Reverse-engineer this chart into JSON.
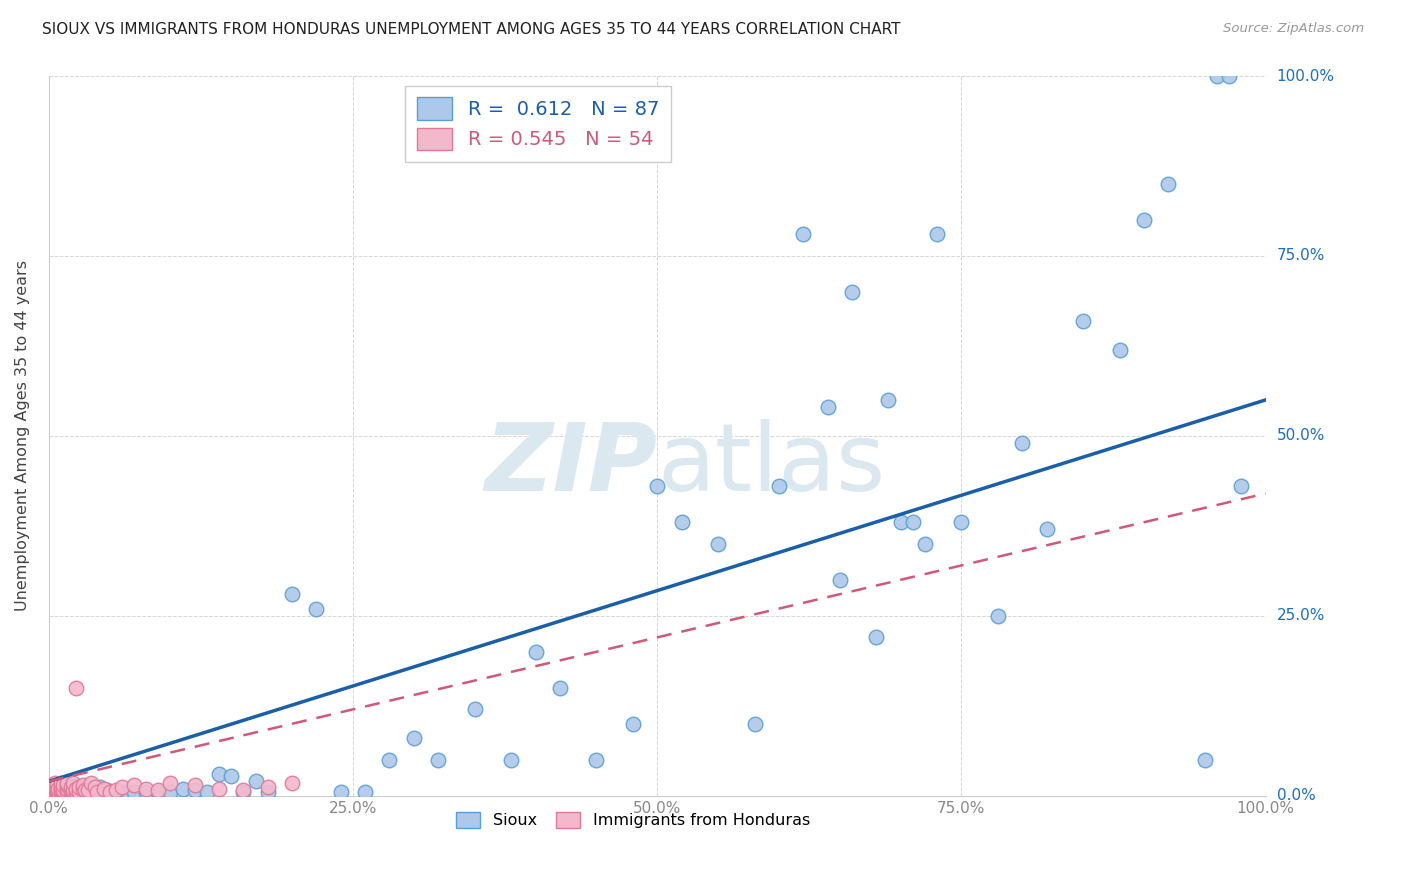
{
  "title": "SIOUX VS IMMIGRANTS FROM HONDURAS UNEMPLOYMENT AMONG AGES 35 TO 44 YEARS CORRELATION CHART",
  "source": "Source: ZipAtlas.com",
  "ylabel": "Unemployment Among Ages 35 to 44 years",
  "xlim": [
    0,
    1
  ],
  "ylim": [
    0,
    1
  ],
  "ytick_labels": [
    "0.0%",
    "25.0%",
    "50.0%",
    "75.0%",
    "100.0%"
  ],
  "ytick_vals": [
    0,
    0.25,
    0.5,
    0.75,
    1.0
  ],
  "xtick_labels": [
    "0.0%",
    "25.0%",
    "50.0%",
    "75.0%",
    "100.0%"
  ],
  "xtick_vals": [
    0,
    0.25,
    0.5,
    0.75,
    1.0
  ],
  "sioux_R": 0.612,
  "sioux_N": 87,
  "honduras_R": 0.545,
  "honduras_N": 54,
  "sioux_color": "#adc8e8",
  "sioux_edge_color": "#5a9fd4",
  "honduras_color": "#f4b8cc",
  "honduras_edge_color": "#e07898",
  "regression_sioux_color": "#1a5fa8",
  "regression_honduras_color": "#d05878",
  "background_color": "#ffffff",
  "watermark_color": "#dce8f0",
  "sioux_x": [
    0.005,
    0.005,
    0.005,
    0.008,
    0.008,
    0.01,
    0.01,
    0.01,
    0.012,
    0.012,
    0.015,
    0.015,
    0.015,
    0.018,
    0.018,
    0.02,
    0.02,
    0.022,
    0.022,
    0.025,
    0.025,
    0.028,
    0.028,
    0.03,
    0.032,
    0.035,
    0.038,
    0.04,
    0.042,
    0.045,
    0.048,
    0.05,
    0.055,
    0.06,
    0.065,
    0.07,
    0.08,
    0.09,
    0.1,
    0.11,
    0.12,
    0.13,
    0.14,
    0.15,
    0.16,
    0.17,
    0.18,
    0.2,
    0.22,
    0.24,
    0.26,
    0.28,
    0.3,
    0.32,
    0.35,
    0.38,
    0.4,
    0.42,
    0.45,
    0.48,
    0.5,
    0.52,
    0.55,
    0.58,
    0.6,
    0.62,
    0.65,
    0.68,
    0.7,
    0.72,
    0.75,
    0.78,
    0.8,
    0.82,
    0.85,
    0.88,
    0.9,
    0.92,
    0.95,
    0.98,
    0.64,
    0.66,
    0.69,
    0.71,
    0.73,
    0.96,
    0.97
  ],
  "sioux_y": [
    0.005,
    0.01,
    0.008,
    0.005,
    0.012,
    0.005,
    0.008,
    0.015,
    0.005,
    0.01,
    0.005,
    0.008,
    0.012,
    0.005,
    0.01,
    0.005,
    0.008,
    0.005,
    0.012,
    0.005,
    0.008,
    0.005,
    0.012,
    0.005,
    0.01,
    0.005,
    0.008,
    0.005,
    0.012,
    0.005,
    0.008,
    0.005,
    0.005,
    0.005,
    0.005,
    0.005,
    0.005,
    0.005,
    0.005,
    0.01,
    0.008,
    0.005,
    0.03,
    0.028,
    0.005,
    0.02,
    0.005,
    0.28,
    0.26,
    0.005,
    0.005,
    0.05,
    0.08,
    0.05,
    0.12,
    0.05,
    0.2,
    0.15,
    0.05,
    0.1,
    0.43,
    0.38,
    0.35,
    0.1,
    0.43,
    0.78,
    0.3,
    0.22,
    0.38,
    0.35,
    0.38,
    0.25,
    0.49,
    0.37,
    0.66,
    0.62,
    0.8,
    0.85,
    0.05,
    0.43,
    0.54,
    0.7,
    0.55,
    0.38,
    0.78,
    1.0,
    1.0
  ],
  "honduras_x": [
    0.003,
    0.003,
    0.003,
    0.005,
    0.005,
    0.005,
    0.005,
    0.007,
    0.007,
    0.007,
    0.008,
    0.008,
    0.01,
    0.01,
    0.01,
    0.01,
    0.012,
    0.012,
    0.012,
    0.015,
    0.015,
    0.015,
    0.015,
    0.018,
    0.018,
    0.018,
    0.02,
    0.02,
    0.02,
    0.022,
    0.022,
    0.022,
    0.025,
    0.025,
    0.028,
    0.028,
    0.03,
    0.032,
    0.035,
    0.038,
    0.04,
    0.045,
    0.05,
    0.055,
    0.06,
    0.07,
    0.08,
    0.09,
    0.1,
    0.12,
    0.14,
    0.16,
    0.18,
    0.2
  ],
  "honduras_y": [
    0.003,
    0.008,
    0.015,
    0.005,
    0.01,
    0.012,
    0.018,
    0.005,
    0.008,
    0.015,
    0.005,
    0.01,
    0.005,
    0.008,
    0.012,
    0.018,
    0.005,
    0.008,
    0.015,
    0.005,
    0.01,
    0.015,
    0.018,
    0.005,
    0.008,
    0.012,
    0.005,
    0.008,
    0.018,
    0.005,
    0.01,
    0.15,
    0.005,
    0.012,
    0.01,
    0.015,
    0.008,
    0.008,
    0.018,
    0.012,
    0.005,
    0.01,
    0.005,
    0.008,
    0.012,
    0.015,
    0.01,
    0.008,
    0.018,
    0.015,
    0.01,
    0.008,
    0.012,
    0.018
  ]
}
